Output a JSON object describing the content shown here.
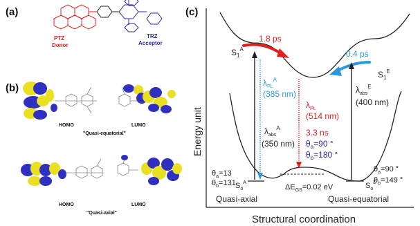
{
  "panels": {
    "a": {
      "label": "(a)",
      "donor_label_line1": "PTZ",
      "donor_label_line2": "Donor",
      "acceptor_label_line1": "TRZ",
      "acceptor_label_line2": "Acceptor",
      "donor_color": "#e02020",
      "acceptor_color": "#2a2aa8"
    },
    "b": {
      "label": "(b)",
      "homo_label": "HOMO",
      "lumo_label": "LUMO",
      "equatorial_caption": "\"Quasi-equatorial\"",
      "axial_caption": "\"Quasi-axial\"",
      "orbital_colors": {
        "positive": "#e8e020",
        "negative": "#3030c0"
      }
    },
    "c": {
      "label": "(c)",
      "y_axis_label": "Energy unit",
      "x_axis_label": "Structural coordination",
      "s1a": {
        "main": "S",
        "sub": "1",
        "sup": "A"
      },
      "s1e": {
        "main": "S",
        "sub": "1",
        "sup": "E"
      },
      "s0a": {
        "main": "S",
        "sub": "o",
        "sup": "A"
      },
      "s0e": {
        "main": "S",
        "sub": "o",
        "sup": "E"
      },
      "red_arrow_time": "1.8 ps",
      "blue_arrow_time": "0.4 ps",
      "lambda_pl_a": {
        "main": "λ",
        "sub": "PL",
        "sup": "A",
        "value": "(385 nm)"
      },
      "lambda_pl": {
        "main": "λ",
        "sub": "PL",
        "value": "(514 nm)"
      },
      "lambda_abs_e": {
        "main": "λ",
        "sub": "abs",
        "sup": "E",
        "value": "(400 nm)"
      },
      "lambda_abs_a": {
        "main": "λ",
        "sub": "abs",
        "sup": "A",
        "value": "(350 nm)"
      },
      "lifetime": "3.3 ns",
      "theta_a_red": {
        "main": "θ",
        "sub": "a",
        "value": "=90 °"
      },
      "theta_b_red": {
        "main": "θ",
        "sub": "b",
        "value": "=180 °"
      },
      "left_theta_a": {
        "main": "θ",
        "sub": "a",
        "value": "=13"
      },
      "left_theta_b": {
        "main": "θ",
        "sub": "b",
        "value": "=131"
      },
      "right_theta_a": {
        "main": "θ",
        "sub": "a",
        "value": "=90 °"
      },
      "right_theta_b": {
        "main": "θ",
        "sub": "b",
        "value": "=149 °"
      },
      "delta_e": {
        "main": "ΔE",
        "sub": "GS",
        "value": "=0.02 eV"
      },
      "left_state": "Quasi-axial",
      "right_state": "Quasi-equatorial",
      "colors": {
        "red": "#e02020",
        "blue": "#2a9ad8",
        "dark": "#222222"
      }
    }
  }
}
